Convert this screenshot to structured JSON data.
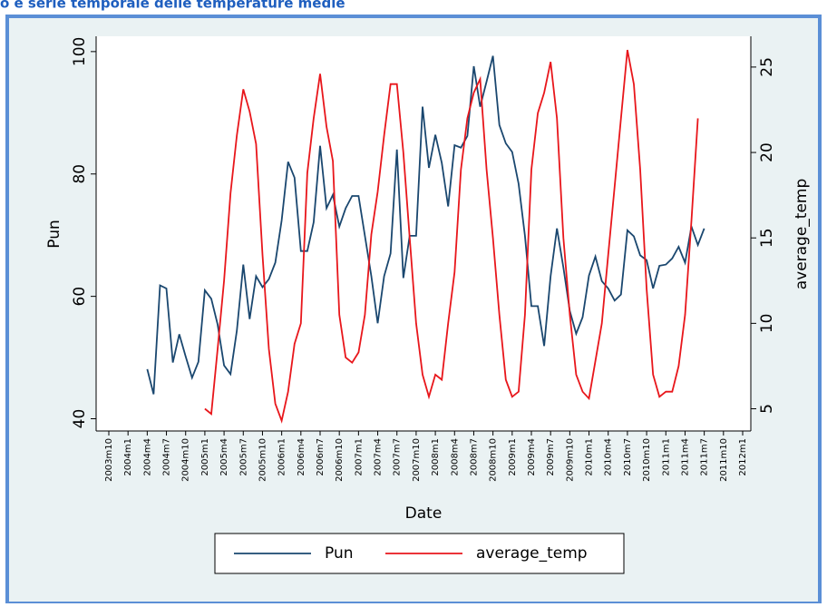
{
  "chart_data": {
    "type": "line",
    "title": "o e serie temporale delle temperature medie",
    "xlabel": "Date",
    "ylabel": "Pun",
    "y2label": "average_temp",
    "categories": [
      "2003m10",
      null,
      null,
      "2004m1",
      null,
      null,
      "2004m4",
      null,
      null,
      "2004m7",
      null,
      null,
      "2004m10",
      null,
      null,
      "2005m1",
      null,
      null,
      "2005m4",
      null,
      null,
      "2005m7",
      null,
      null,
      "2005m10",
      null,
      null,
      "2006m1",
      null,
      null,
      "2006m4",
      null,
      null,
      "2006m7",
      null,
      null,
      "2006m10",
      null,
      null,
      "2007m1",
      null,
      null,
      "2007m4",
      null,
      null,
      "2007m7",
      null,
      null,
      "2007m10",
      null,
      null,
      "2008m1",
      null,
      null,
      "2008m4",
      null,
      null,
      "2008m7",
      null,
      null,
      "2008m10",
      null,
      null,
      "2009m1",
      null,
      null,
      "2009m4",
      null,
      null,
      "2009m7",
      null,
      null,
      "2009m10",
      null,
      null,
      "2010m1",
      null,
      null,
      "2010m4",
      null,
      null,
      "2010m7",
      null,
      null,
      "2010m10",
      null,
      null,
      "2011m1",
      null,
      null,
      "2011m4",
      null,
      null,
      "2011m7",
      null,
      null,
      "2011m10",
      null,
      null,
      "2012m1"
    ],
    "series": [
      {
        "name": "Pun",
        "color": "#1a476f",
        "axis": "y",
        "values": [
          null,
          null,
          null,
          null,
          null,
          null,
          48.1,
          44,
          61.8,
          61.3,
          49.2,
          53.8,
          50.2,
          46.7,
          49.3,
          61,
          59.6,
          55.4,
          48.7,
          47.3,
          54.4,
          65.2,
          56.3,
          63.3,
          61.5,
          62.8,
          65.5,
          72.4,
          82,
          79.4,
          67.4,
          67.4,
          72.1,
          84.6,
          74.4,
          76.6,
          71.4,
          74.4,
          76.4,
          76.4,
          69.9,
          63.3,
          55.6,
          63.3,
          67,
          84,
          63,
          69.9,
          69.9,
          91,
          81,
          86.4,
          81.8,
          74.7,
          84.7,
          84.3,
          86.2,
          97.6,
          91,
          95.1,
          99.3,
          88,
          85,
          83.6,
          78.4,
          69.9,
          58.4,
          58.4,
          51.9,
          63.3,
          71.1,
          64.7,
          57.6,
          53.9,
          56.6,
          63.4,
          66.5,
          62.5,
          61.3,
          59.3,
          60.3,
          70.8,
          69.8,
          66.7,
          65.9,
          61.3,
          65,
          65.2,
          66.2,
          68.1,
          65.5,
          71.4,
          68.4,
          71.1,
          null,
          null,
          null,
          null,
          null,
          null
        ]
      },
      {
        "name": "average_temp",
        "color": "#e8161b",
        "axis": "y2",
        "values": [
          null,
          null,
          null,
          null,
          null,
          null,
          null,
          null,
          null,
          null,
          null,
          null,
          null,
          null,
          null,
          5,
          4.7,
          8.5,
          12.5,
          17.6,
          21,
          23.7,
          22.4,
          20.5,
          14,
          8.5,
          5.3,
          4.3,
          6,
          8.8,
          10,
          18.8,
          22,
          24.6,
          21.5,
          19.5,
          10.5,
          8,
          7.7,
          8.3,
          10.5,
          15.2,
          17.7,
          21,
          24,
          24,
          20,
          15,
          10,
          7,
          5.7,
          7,
          6.7,
          10,
          13,
          19,
          22,
          23.5,
          24.3,
          19,
          15,
          10.5,
          6.7,
          5.7,
          6,
          10.5,
          19,
          22.3,
          23.5,
          25.3,
          22,
          15,
          10.5,
          7,
          6,
          5.6,
          7.8,
          10,
          14,
          18,
          22,
          26,
          24,
          19,
          12,
          7,
          5.7,
          6,
          6,
          7.5,
          10.5,
          16,
          22,
          null,
          null,
          null,
          null,
          null,
          null,
          null
        ]
      }
    ],
    "ylim": [
      38,
      102.5
    ],
    "yticks": [
      40,
      60,
      80,
      100
    ],
    "y2lim": [
      3.7,
      26.8
    ],
    "y2ticks": [
      5,
      10,
      15,
      20,
      25
    ],
    "grid": false,
    "legend": "bottom"
  }
}
